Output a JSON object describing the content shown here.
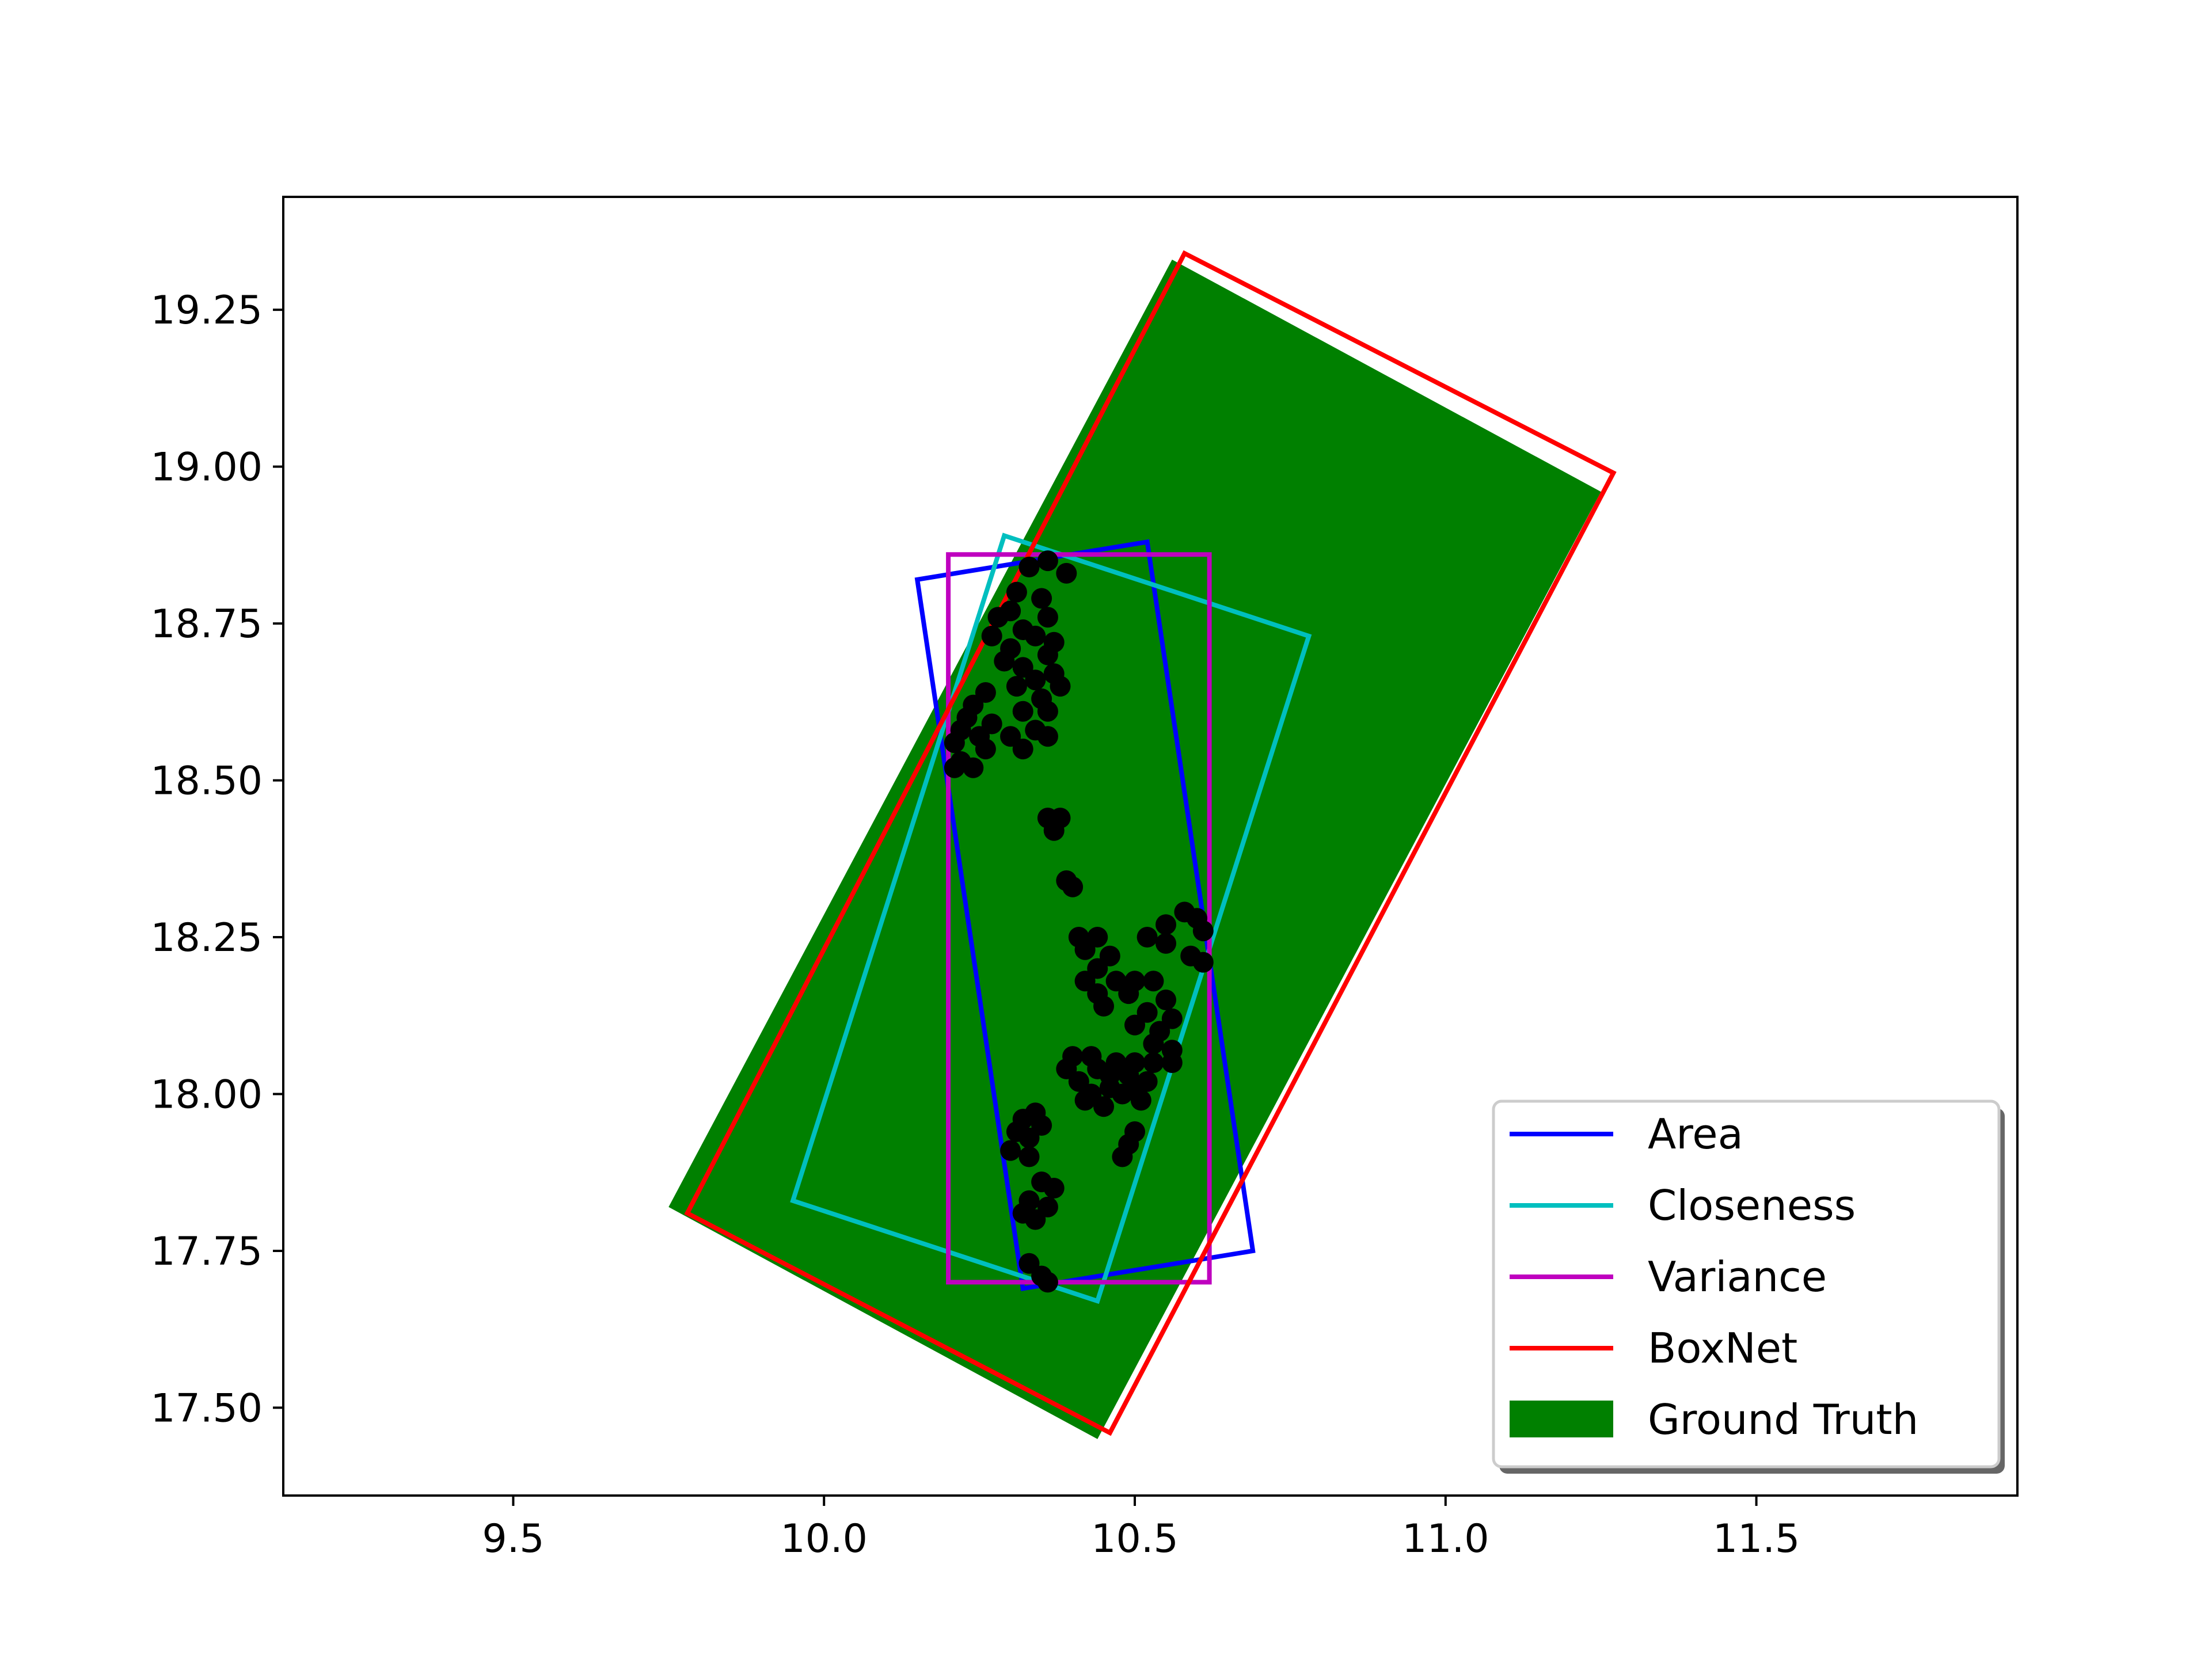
{
  "chart_data": {
    "type": "scatter",
    "title": "",
    "xlabel": "",
    "ylabel": "",
    "xlim": [
      9.13,
      11.92
    ],
    "ylim": [
      17.36,
      19.43
    ],
    "xticks": [
      "9.5",
      "10.0",
      "10.5",
      "11.0",
      "11.5"
    ],
    "yticks": [
      "17.50",
      "17.75",
      "18.00",
      "18.25",
      "18.50",
      "18.75",
      "19.00",
      "19.25"
    ],
    "grid": false,
    "legend_position": "lower-right",
    "series": [
      {
        "name": "Ground Truth",
        "kind": "filled-polygon",
        "color": "#008000",
        "points": [
          [
            9.75,
            17.82
          ],
          [
            10.56,
            19.33
          ],
          [
            11.25,
            18.96
          ],
          [
            10.44,
            17.45
          ]
        ]
      },
      {
        "name": "Area",
        "kind": "polygon",
        "color": "#0000ff",
        "points": [
          [
            10.15,
            18.82
          ],
          [
            10.52,
            18.88
          ],
          [
            10.69,
            17.75
          ],
          [
            10.32,
            17.69
          ]
        ]
      },
      {
        "name": "Closeness",
        "kind": "polygon",
        "color": "#00bfbf",
        "points": [
          [
            10.29,
            18.89
          ],
          [
            10.78,
            18.73
          ],
          [
            10.44,
            17.67
          ],
          [
            9.95,
            17.83
          ]
        ]
      },
      {
        "name": "Variance",
        "kind": "polygon",
        "color": "#bf00bf",
        "points": [
          [
            10.2,
            18.86
          ],
          [
            10.62,
            18.86
          ],
          [
            10.62,
            17.7
          ],
          [
            10.2,
            17.7
          ]
        ]
      },
      {
        "name": "BoxNet",
        "kind": "polygon",
        "color": "#ff0000",
        "points": [
          [
            9.78,
            17.81
          ],
          [
            10.58,
            19.34
          ],
          [
            11.27,
            18.99
          ],
          [
            10.46,
            17.46
          ]
        ]
      }
    ],
    "points": {
      "color": "#000000",
      "values": [
        [
          10.33,
          18.84
        ],
        [
          10.36,
          18.85
        ],
        [
          10.39,
          18.83
        ],
        [
          10.31,
          18.8
        ],
        [
          10.35,
          18.79
        ],
        [
          10.3,
          18.77
        ],
        [
          10.36,
          18.76
        ],
        [
          10.28,
          18.76
        ],
        [
          10.32,
          18.74
        ],
        [
          10.27,
          18.73
        ],
        [
          10.34,
          18.73
        ],
        [
          10.37,
          18.72
        ],
        [
          10.3,
          18.71
        ],
        [
          10.36,
          18.7
        ],
        [
          10.29,
          18.69
        ],
        [
          10.32,
          18.68
        ],
        [
          10.37,
          18.67
        ],
        [
          10.34,
          18.66
        ],
        [
          10.31,
          18.65
        ],
        [
          10.38,
          18.65
        ],
        [
          10.26,
          18.64
        ],
        [
          10.35,
          18.63
        ],
        [
          10.24,
          18.62
        ],
        [
          10.32,
          18.61
        ],
        [
          10.36,
          18.61
        ],
        [
          10.23,
          18.6
        ],
        [
          10.27,
          18.59
        ],
        [
          10.34,
          18.58
        ],
        [
          10.22,
          18.58
        ],
        [
          10.25,
          18.57
        ],
        [
          10.3,
          18.57
        ],
        [
          10.36,
          18.57
        ],
        [
          10.21,
          18.56
        ],
        [
          10.26,
          18.55
        ],
        [
          10.32,
          18.55
        ],
        [
          10.22,
          18.53
        ],
        [
          10.24,
          18.52
        ],
        [
          10.21,
          18.52
        ],
        [
          10.36,
          18.44
        ],
        [
          10.38,
          18.44
        ],
        [
          10.37,
          18.42
        ],
        [
          10.39,
          18.34
        ],
        [
          10.4,
          18.33
        ],
        [
          10.58,
          18.29
        ],
        [
          10.6,
          18.28
        ],
        [
          10.55,
          18.27
        ],
        [
          10.61,
          18.26
        ],
        [
          10.41,
          18.25
        ],
        [
          10.44,
          18.25
        ],
        [
          10.52,
          18.25
        ],
        [
          10.55,
          18.24
        ],
        [
          10.42,
          18.23
        ],
        [
          10.46,
          18.22
        ],
        [
          10.59,
          18.22
        ],
        [
          10.61,
          18.21
        ],
        [
          10.44,
          18.2
        ],
        [
          10.42,
          18.18
        ],
        [
          10.47,
          18.18
        ],
        [
          10.5,
          18.18
        ],
        [
          10.53,
          18.18
        ],
        [
          10.44,
          18.16
        ],
        [
          10.49,
          18.16
        ],
        [
          10.55,
          18.15
        ],
        [
          10.45,
          18.14
        ],
        [
          10.52,
          18.13
        ],
        [
          10.56,
          18.12
        ],
        [
          10.54,
          18.1
        ],
        [
          10.5,
          18.11
        ],
        [
          10.53,
          18.08
        ],
        [
          10.56,
          18.07
        ],
        [
          10.4,
          18.06
        ],
        [
          10.43,
          18.06
        ],
        [
          10.47,
          18.05
        ],
        [
          10.5,
          18.05
        ],
        [
          10.53,
          18.05
        ],
        [
          10.56,
          18.05
        ],
        [
          10.39,
          18.04
        ],
        [
          10.44,
          18.04
        ],
        [
          10.46,
          18.03
        ],
        [
          10.49,
          18.03
        ],
        [
          10.52,
          18.02
        ],
        [
          10.41,
          18.02
        ],
        [
          10.46,
          18.01
        ],
        [
          10.5,
          18.01
        ],
        [
          10.43,
          18.0
        ],
        [
          10.48,
          18.0
        ],
        [
          10.51,
          17.99
        ],
        [
          10.42,
          17.99
        ],
        [
          10.45,
          17.98
        ],
        [
          10.34,
          17.97
        ],
        [
          10.32,
          17.96
        ],
        [
          10.35,
          17.95
        ],
        [
          10.31,
          17.94
        ],
        [
          10.33,
          17.93
        ],
        [
          10.5,
          17.94
        ],
        [
          10.49,
          17.92
        ],
        [
          10.3,
          17.91
        ],
        [
          10.33,
          17.9
        ],
        [
          10.48,
          17.9
        ],
        [
          10.35,
          17.86
        ],
        [
          10.37,
          17.85
        ],
        [
          10.33,
          17.83
        ],
        [
          10.36,
          17.82
        ],
        [
          10.32,
          17.81
        ],
        [
          10.34,
          17.8
        ],
        [
          10.33,
          17.73
        ],
        [
          10.35,
          17.71
        ],
        [
          10.36,
          17.7
        ]
      ]
    }
  },
  "legend": {
    "items": [
      {
        "label": "Area",
        "color": "#0000ff",
        "kind": "line"
      },
      {
        "label": "Closeness",
        "color": "#00bfbf",
        "kind": "line"
      },
      {
        "label": "Variance",
        "color": "#bf00bf",
        "kind": "line"
      },
      {
        "label": "BoxNet",
        "color": "#ff0000",
        "kind": "line"
      },
      {
        "label": "Ground Truth",
        "color": "#008000",
        "kind": "patch"
      }
    ]
  }
}
